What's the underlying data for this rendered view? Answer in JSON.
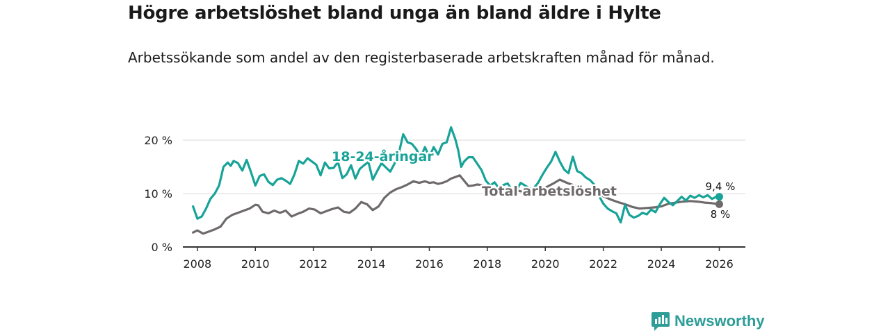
{
  "header": {
    "title": "Högre arbetslöshet bland unga än bland äldre i Hylte",
    "subtitle": "Arbetssökande som andel av den registerbaserade arbetskraften månad för månad."
  },
  "brand": {
    "name": "Newsworthy",
    "color": "#2c9d97"
  },
  "chart_data": {
    "type": "line",
    "title": "Högre arbetslöshet bland unga än bland äldre i Hylte",
    "xlabel": "",
    "ylabel": "",
    "xlim": [
      2007.5,
      2026.9
    ],
    "ylim": [
      0,
      20
    ],
    "y_ticks": [
      0,
      10,
      20
    ],
    "y_tick_labels": [
      "0 %",
      "10 %",
      "20 %"
    ],
    "x_ticks": [
      2008,
      2010,
      2012,
      2014,
      2016,
      2018,
      2020,
      2022,
      2024,
      2026
    ],
    "x_tick_labels": [
      "2008",
      "2010",
      "2012",
      "2014",
      "2016",
      "2018",
      "2020",
      "2022",
      "2024",
      "2026"
    ],
    "grid": true,
    "series": [
      {
        "name": "18-24-åringar",
        "label": "18-24-åringar",
        "color": "#17a398",
        "end_label": "9,4 %",
        "x": [
          2007.85,
          2008.0,
          2008.15,
          2008.3,
          2008.45,
          2008.6,
          2008.75,
          2008.9,
          2009.05,
          2009.15,
          2009.25,
          2009.4,
          2009.55,
          2009.7,
          2009.85,
          2010.0,
          2010.15,
          2010.3,
          2010.45,
          2010.6,
          2010.75,
          2010.9,
          2011.05,
          2011.2,
          2011.35,
          2011.5,
          2011.65,
          2011.8,
          2011.95,
          2012.1,
          2012.25,
          2012.4,
          2012.55,
          2012.7,
          2012.85,
          2013.0,
          2013.15,
          2013.3,
          2013.45,
          2013.6,
          2013.75,
          2013.9,
          2014.05,
          2014.2,
          2014.35,
          2014.5,
          2014.65,
          2014.8,
          2014.95,
          2015.1,
          2015.25,
          2015.4,
          2015.55,
          2015.7,
          2015.85,
          2016.0,
          2016.15,
          2016.3,
          2016.45,
          2016.6,
          2016.75,
          2016.9,
          2017.0,
          2017.1,
          2017.2,
          2017.35,
          2017.5,
          2017.65,
          2017.8,
          2017.95,
          2018.1,
          2018.25,
          2018.4,
          2018.55,
          2018.7,
          2018.85,
          2019.0,
          2019.15,
          2019.3,
          2019.45,
          2019.6,
          2019.75,
          2019.9,
          2020.05,
          2020.2,
          2020.35,
          2020.5,
          2020.65,
          2020.8,
          2020.95,
          2021.1,
          2021.25,
          2021.4,
          2021.55,
          2021.7,
          2021.85,
          2022.0,
          2022.15,
          2022.3,
          2022.45,
          2022.6,
          2022.75,
          2022.9,
          2023.05,
          2023.2,
          2023.35,
          2023.5,
          2023.65,
          2023.8,
          2023.95,
          2024.1,
          2024.25,
          2024.4,
          2024.55,
          2024.7,
          2024.85,
          2025.0,
          2025.15,
          2025.3,
          2025.45,
          2025.6,
          2025.75,
          2025.9,
          2026.0
        ],
        "values": [
          7.6,
          5.3,
          5.7,
          7.2,
          9.0,
          10.0,
          11.5,
          15.0,
          15.8,
          15.2,
          16.1,
          15.7,
          14.3,
          16.3,
          14.0,
          11.5,
          13.3,
          13.6,
          12.2,
          11.6,
          12.6,
          12.9,
          12.4,
          11.8,
          13.6,
          16.1,
          15.6,
          16.6,
          16.0,
          15.4,
          13.4,
          15.8,
          14.7,
          14.8,
          15.9,
          12.9,
          13.6,
          15.3,
          12.8,
          14.6,
          15.3,
          15.9,
          12.6,
          14.2,
          15.7,
          14.9,
          14.1,
          15.6,
          17.6,
          21.1,
          19.6,
          19.3,
          18.3,
          16.8,
          18.7,
          16.8,
          18.7,
          17.3,
          19.3,
          19.6,
          22.4,
          20.1,
          18.0,
          15.0,
          16.0,
          16.8,
          16.8,
          15.6,
          14.4,
          12.4,
          11.5,
          12.1,
          11.0,
          11.6,
          11.9,
          10.7,
          10.6,
          12.0,
          11.5,
          11.0,
          11.0,
          12.0,
          13.5,
          14.8,
          16.0,
          17.8,
          16.0,
          14.5,
          13.8,
          16.9,
          14.2,
          13.8,
          13.0,
          12.5,
          11.6,
          9.6,
          8.1,
          7.2,
          6.7,
          6.3,
          4.6,
          7.9,
          6.0,
          5.5,
          5.8,
          6.4,
          6.1,
          7.0,
          6.5,
          8.0,
          9.2,
          8.4,
          7.8,
          8.6,
          9.4,
          8.7,
          9.6,
          9.2,
          9.7,
          9.3,
          9.7,
          9.0,
          9.4,
          9.4
        ]
      },
      {
        "name": "Total arbetslöshet",
        "label": "Total arbetslöshet",
        "color": "#6e6a6c",
        "end_label": "8 %",
        "x": [
          2007.85,
          2008.0,
          2008.2,
          2008.4,
          2008.6,
          2008.8,
          2009.0,
          2009.2,
          2009.4,
          2009.6,
          2009.8,
          2010.0,
          2010.1,
          2010.25,
          2010.45,
          2010.65,
          2010.85,
          2011.05,
          2011.25,
          2011.45,
          2011.65,
          2011.85,
          2012.05,
          2012.25,
          2012.45,
          2012.65,
          2012.85,
          2013.05,
          2013.25,
          2013.45,
          2013.65,
          2013.85,
          2014.05,
          2014.25,
          2014.45,
          2014.65,
          2014.85,
          2015.05,
          2015.25,
          2015.45,
          2015.65,
          2015.85,
          2016.0,
          2016.15,
          2016.3,
          2016.45,
          2016.6,
          2016.75,
          2016.9,
          2017.05,
          2017.2,
          2017.35,
          2017.5,
          2017.65,
          2017.8,
          2018.0,
          2018.25,
          2018.5,
          2018.75,
          2019.0,
          2019.25,
          2019.5,
          2019.75,
          2020.0,
          2020.25,
          2020.5,
          2020.75,
          2021.0,
          2021.25,
          2021.5,
          2021.75,
          2022.0,
          2022.25,
          2022.5,
          2022.75,
          2023.0,
          2023.25,
          2023.5,
          2023.75,
          2024.0,
          2024.25,
          2024.5,
          2024.75,
          2025.0,
          2025.25,
          2025.5,
          2025.75,
          2026.0
        ],
        "values": [
          2.7,
          3.1,
          2.5,
          2.9,
          3.3,
          3.8,
          5.3,
          6.0,
          6.4,
          6.8,
          7.2,
          7.9,
          7.8,
          6.6,
          6.3,
          6.8,
          6.4,
          6.8,
          5.7,
          6.2,
          6.6,
          7.2,
          7.0,
          6.3,
          6.7,
          7.1,
          7.4,
          6.6,
          6.4,
          7.2,
          8.4,
          8.0,
          6.9,
          7.6,
          9.2,
          10.2,
          10.8,
          11.2,
          11.7,
          12.3,
          12.0,
          12.3,
          12.0,
          12.1,
          11.8,
          12.0,
          12.3,
          12.8,
          13.1,
          13.4,
          12.4,
          11.4,
          11.5,
          11.7,
          11.6,
          10.9,
          10.5,
          10.1,
          10.2,
          10.6,
          10.3,
          10.8,
          10.8,
          11.1,
          11.8,
          12.6,
          12.0,
          11.5,
          10.9,
          10.4,
          10.2,
          9.5,
          8.9,
          8.4,
          8.0,
          7.5,
          7.2,
          7.3,
          7.4,
          7.6,
          8.1,
          8.3,
          8.5,
          8.6,
          8.5,
          8.3,
          8.2,
          8.0
        ]
      }
    ]
  }
}
